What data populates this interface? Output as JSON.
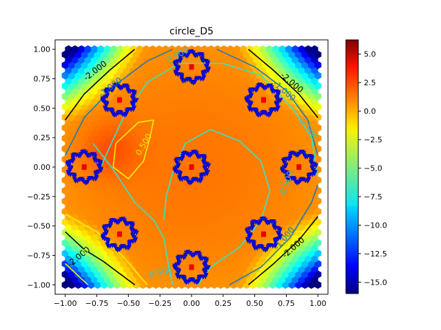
{
  "chart_data": {
    "type": "heatmap",
    "title": "circle_D5",
    "xlabel": "",
    "ylabel": "",
    "xlim": [
      -1.08,
      1.08
    ],
    "ylim": [
      -1.08,
      1.08
    ],
    "x_ticks": [
      -1.0,
      -0.75,
      -0.5,
      -0.25,
      0.0,
      0.25,
      0.5,
      0.75,
      1.0
    ],
    "y_ticks": [
      -1.0,
      -0.75,
      -0.5,
      -0.25,
      0.0,
      0.25,
      0.5,
      0.75,
      1.0
    ],
    "x_tick_labels": [
      "−1.00",
      "−0.75",
      "−0.50",
      "−0.25",
      "0.00",
      "0.25",
      "0.50",
      "0.75",
      "1.00"
    ],
    "y_tick_labels": [
      "−1.00",
      "−0.75",
      "−0.50",
      "−0.25",
      "0.00",
      "0.25",
      "0.50",
      "0.75",
      "1.00"
    ],
    "colormap": "jet",
    "colorbar": {
      "min": -16.0,
      "max": 6.25,
      "ticks": [
        5.0,
        2.5,
        0.0,
        -2.5,
        -5.0,
        -7.5,
        -10.0,
        -12.5,
        -15.0
      ],
      "tick_labels": [
        "5.0",
        "2.5",
        "0.0",
        "−2.5",
        "−5.0",
        "−7.5",
        "−10.0",
        "−12.5",
        "−15.0"
      ]
    },
    "contour_labels": [
      {
        "text": "-2.000",
        "x": -0.75,
        "y": 0.8,
        "rot": -38,
        "color": "#000000"
      },
      {
        "text": "-1.000",
        "x": -0.63,
        "y": 0.66,
        "rot": -38,
        "color": "#1f77b4"
      },
      {
        "text": "-2.000",
        "x": 0.78,
        "y": 0.7,
        "rot": 40,
        "color": "#000000"
      },
      {
        "text": "-1.000",
        "x": 0.72,
        "y": 0.63,
        "rot": 40,
        "color": "#1f77b4"
      },
      {
        "text": "-0.500",
        "x": 0.9,
        "y": 0.32,
        "rot": 55,
        "color": "#33c4c4"
      },
      {
        "text": "0.500",
        "x": -0.1,
        "y": 0.93,
        "rot": -30,
        "color": "#33c4c4"
      },
      {
        "text": "0.500",
        "x": -0.36,
        "y": 0.18,
        "rot": -60,
        "color": "#e8e800"
      },
      {
        "text": "-0.500",
        "x": 0.77,
        "y": -0.15,
        "rot": -70,
        "color": "#33c4c4"
      },
      {
        "text": "-1.000",
        "x": 0.75,
        "y": -0.62,
        "rot": -50,
        "color": "#1f77b4"
      },
      {
        "text": "-2.000",
        "x": 0.82,
        "y": -0.7,
        "rot": -42,
        "color": "#000000"
      },
      {
        "text": "-2.000",
        "x": -0.88,
        "y": -0.78,
        "rot": -40,
        "color": "#000000"
      },
      {
        "text": "0.500",
        "x": -0.78,
        "y": -0.67,
        "rot": -55,
        "color": "#e8e800"
      },
      {
        "text": "-0.500",
        "x": -0.25,
        "y": -0.92,
        "rot": -12,
        "color": "#33c4c4"
      }
    ],
    "centers": [
      {
        "x": 0.0,
        "y": 0.85
      },
      {
        "x": 0.57,
        "y": 0.57
      },
      {
        "x": 0.85,
        "y": 0.0
      },
      {
        "x": 0.57,
        "y": -0.57
      },
      {
        "x": 0.0,
        "y": -0.85
      },
      {
        "x": -0.57,
        "y": -0.57
      },
      {
        "x": -0.85,
        "y": 0.0
      },
      {
        "x": -0.57,
        "y": 0.57
      },
      {
        "x": 0.0,
        "y": 0.0
      }
    ]
  }
}
